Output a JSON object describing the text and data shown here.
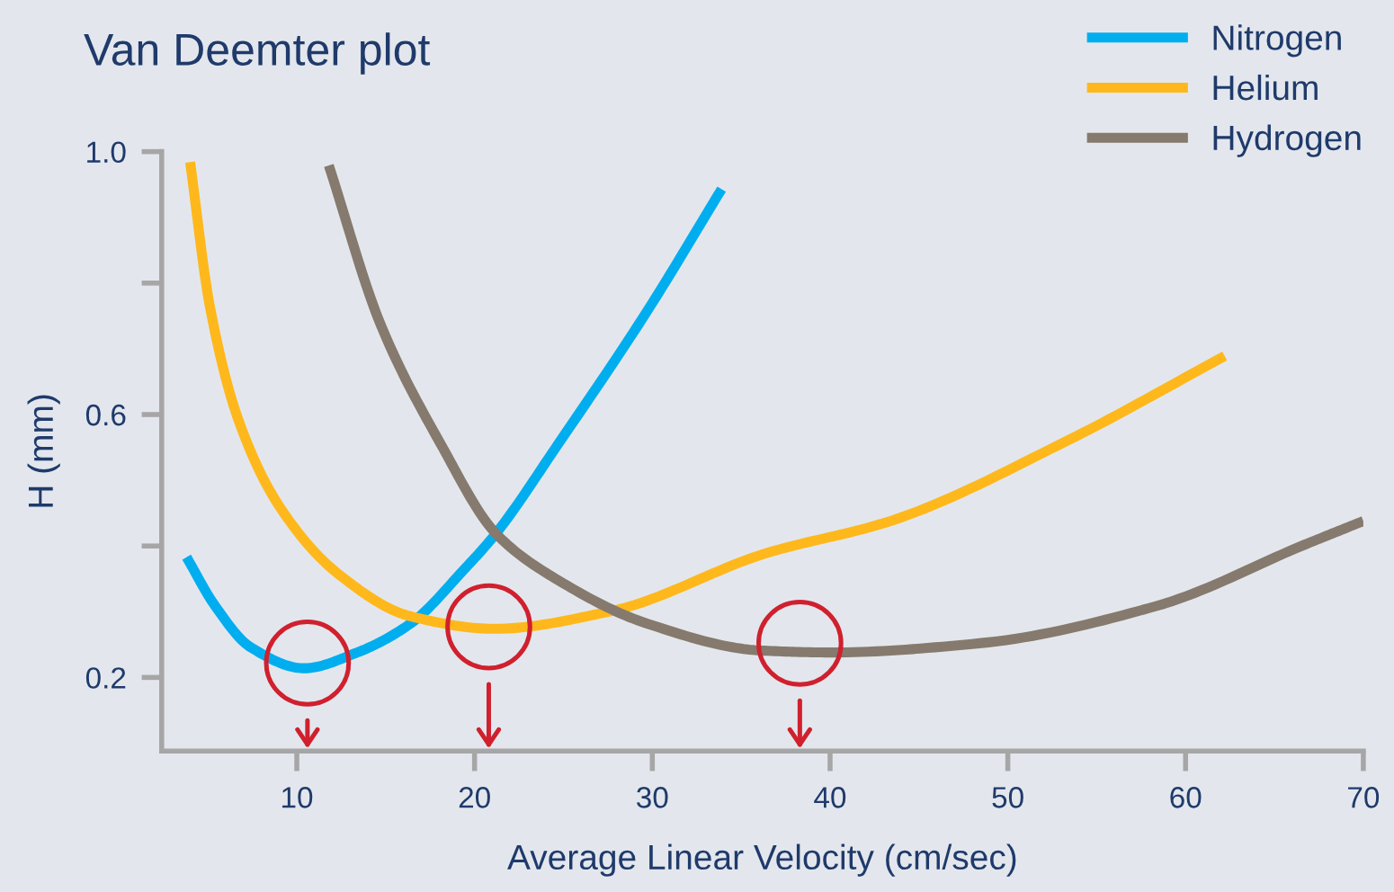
{
  "chart_data": {
    "type": "line",
    "title": "Van Deemter plot",
    "xlabel": "Average Linear Velocity (cm/sec)",
    "ylabel": "H (mm)",
    "xlim": [
      2.4,
      70
    ],
    "xticks": [
      10,
      20,
      30,
      40,
      50,
      60,
      70
    ],
    "ylim": [
      0.088,
      1.0
    ],
    "yticks": [
      0.2,
      {
        "value": 0.4,
        "label": null
      },
      0.6,
      {
        "value": 0.8,
        "label": null
      },
      {
        "value": 1.0,
        "label": "1.0"
      }
    ],
    "grid": false,
    "legend": "top right",
    "line_style": "solid",
    "series": [
      {
        "name": "Nitrogen",
        "color": "#00aeef",
        "x": [
          3.8,
          5.4,
          7.4,
          10.4,
          13.4,
          16.4,
          19.4,
          21.2,
          24.7,
          29.7,
          33.9
        ],
        "values": [
          0.383,
          0.309,
          0.246,
          0.214,
          0.238,
          0.282,
          0.364,
          0.419,
          0.555,
          0.757,
          0.943
        ]
      },
      {
        "name": "Helium",
        "color": "#ffb81c",
        "x": [
          4.0,
          5.1,
          6.7,
          9.1,
          12.4,
          16.4,
          21.1,
          27.7,
          36.4,
          43.4,
          53.4,
          62.2
        ],
        "values": [
          0.984,
          0.766,
          0.593,
          0.457,
          0.356,
          0.293,
          0.274,
          0.301,
          0.389,
          0.438,
          0.561,
          0.689
        ]
      },
      {
        "name": "Hydrogen",
        "color": "#857a6d",
        "x": [
          11.8,
          14.7,
          18.1,
          21.2,
          24.7,
          29.7,
          36.1,
          40.1,
          48.4,
          58.4,
          66.7,
          70.0
        ],
        "values": [
          0.979,
          0.738,
          0.555,
          0.419,
          0.348,
          0.282,
          0.241,
          0.238,
          0.252,
          0.309,
          0.402,
          0.438
        ]
      },
      {
        "type": "scatter",
        "marker": "circle",
        "color": "#d0202e",
        "x": [
          10.6,
          20.8,
          38.3
        ],
        "values": [
          0.222,
          0.277,
          0.252
        ]
      }
    ]
  }
}
